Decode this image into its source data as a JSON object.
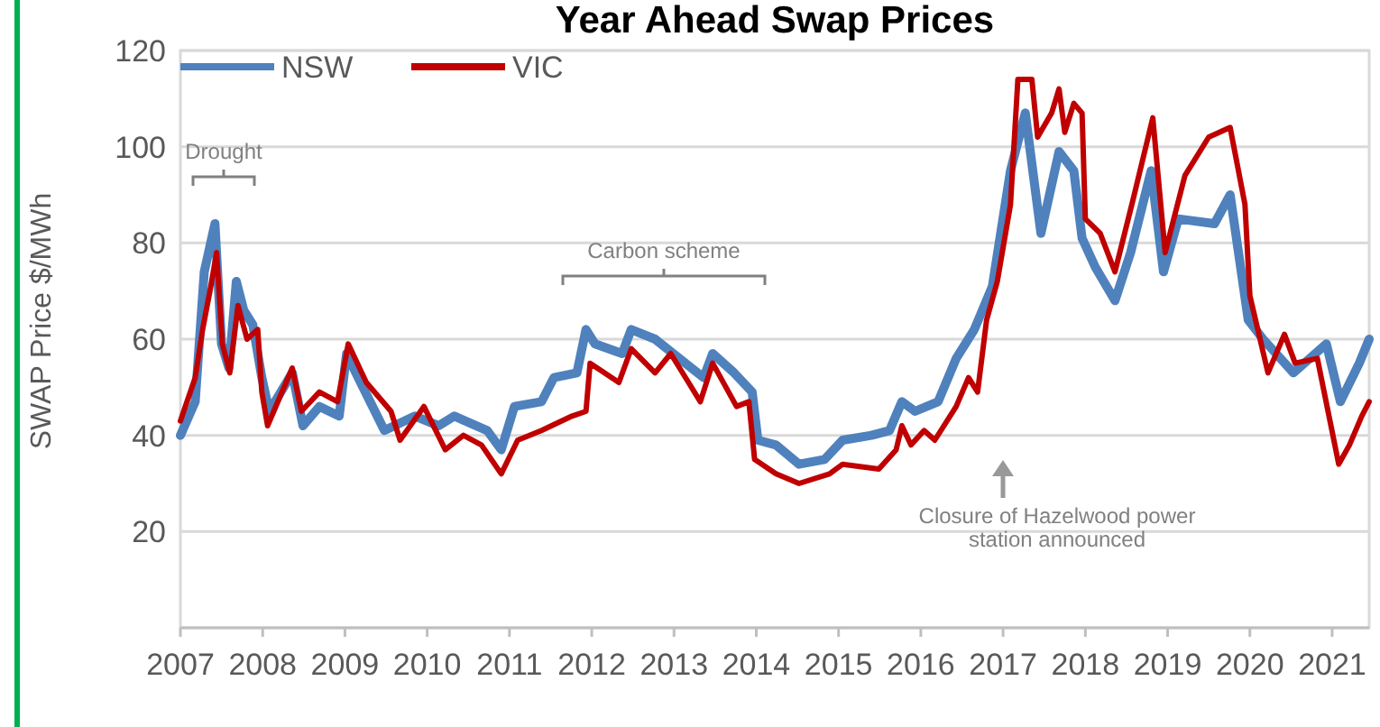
{
  "chart_data": {
    "type": "line",
    "title": "Year Ahead Swap Prices",
    "ylabel": "SWAP Price $/MWh",
    "xlim": [
      2007,
      2021.45
    ],
    "xticks": [
      2007,
      2008,
      2009,
      2010,
      2011,
      2012,
      2013,
      2014,
      2015,
      2016,
      2017,
      2018,
      2019,
      2020,
      2021
    ],
    "ylim": [
      0,
      120
    ],
    "yticks": [
      20,
      40,
      60,
      80,
      100,
      120
    ],
    "grid": "y",
    "legend": "top left",
    "line_style": "solid",
    "marker": "none",
    "annotations": [
      "Drought",
      "Carbon scheme",
      "Closure of Hazelwood power station announced"
    ],
    "series": [
      {
        "name": "NSW",
        "color": "#4f81bd",
        "x": [
          2007.0,
          2007.18,
          2007.29,
          2007.42,
          2007.5,
          2007.59,
          2007.68,
          2007.77,
          2007.88,
          2007.99,
          2008.08,
          2008.36,
          2008.49,
          2008.69,
          2008.93,
          2009.02,
          2009.19,
          2009.48,
          2009.85,
          2010.14,
          2010.33,
          2010.73,
          2010.9,
          2011.06,
          2011.39,
          2011.54,
          2011.82,
          2011.93,
          2012.04,
          2012.37,
          2012.48,
          2012.77,
          2012.99,
          2013.36,
          2013.47,
          2013.73,
          2013.95,
          2014.02,
          2014.24,
          2014.52,
          2014.83,
          2015.05,
          2015.4,
          2015.62,
          2015.77,
          2015.93,
          2016.21,
          2016.43,
          2016.65,
          2016.87,
          2017.09,
          2017.27,
          2017.46,
          2017.68,
          2017.86,
          2017.96,
          2018.12,
          2018.36,
          2018.55,
          2018.8,
          2018.95,
          2019.13,
          2019.57,
          2019.76,
          2019.98,
          2020.16,
          2020.53,
          2020.93,
          2021.1,
          2021.33,
          2021.45
        ],
        "values": [
          40,
          47,
          74,
          84,
          59,
          54,
          72,
          66,
          63,
          52,
          45,
          53,
          42,
          46,
          44,
          57,
          51,
          41,
          44,
          42,
          44,
          41,
          37,
          46,
          47,
          52,
          53,
          62,
          59,
          57,
          62,
          60,
          57,
          52,
          57,
          53,
          49,
          39,
          38,
          34,
          35,
          39,
          40,
          41,
          47,
          45,
          47,
          56,
          62,
          71,
          95,
          107,
          82,
          99,
          95,
          81,
          75,
          68,
          78,
          95,
          74,
          85,
          84,
          90,
          64,
          60,
          53,
          59,
          47,
          55,
          60
        ]
      },
      {
        "name": "VIC",
        "color": "#c00000",
        "x": [
          2007.0,
          2007.18,
          2007.27,
          2007.37,
          2007.44,
          2007.51,
          2007.6,
          2007.7,
          2007.81,
          2007.94,
          2007.99,
          2008.06,
          2008.36,
          2008.47,
          2008.69,
          2008.91,
          2009.04,
          2009.26,
          2009.56,
          2009.67,
          2009.96,
          2010.22,
          2010.44,
          2010.66,
          2010.9,
          2011.1,
          2011.39,
          2011.76,
          2011.93,
          2011.98,
          2012.33,
          2012.48,
          2012.77,
          2012.96,
          2013.32,
          2013.47,
          2013.76,
          2013.91,
          2013.98,
          2014.24,
          2014.52,
          2014.89,
          2015.05,
          2015.49,
          2015.7,
          2015.77,
          2015.88,
          2016.04,
          2016.17,
          2016.43,
          2016.58,
          2016.69,
          2016.8,
          2016.93,
          2017.09,
          2017.18,
          2017.35,
          2017.42,
          2017.59,
          2017.68,
          2017.75,
          2017.86,
          2017.96,
          2018.0,
          2018.18,
          2018.36,
          2018.58,
          2018.82,
          2018.97,
          2019.21,
          2019.5,
          2019.76,
          2019.94,
          2020.0,
          2020.22,
          2020.42,
          2020.55,
          2020.82,
          2021.08,
          2021.21,
          2021.36,
          2021.45
        ],
        "values": [
          43,
          52,
          62,
          71,
          78,
          59,
          53,
          67,
          60,
          62,
          49,
          42,
          54,
          45,
          49,
          47,
          59,
          51,
          45,
          39,
          46,
          37,
          40,
          38,
          32,
          39,
          41,
          44,
          45,
          55,
          51,
          58,
          53,
          57,
          47,
          55,
          46,
          47,
          35,
          32,
          30,
          32,
          34,
          33,
          37,
          42,
          38,
          41,
          39,
          46,
          52,
          49,
          64,
          72,
          88,
          114,
          114,
          102,
          107,
          112,
          103,
          109,
          107,
          85,
          82,
          74,
          89,
          106,
          78,
          94,
          102,
          104,
          88,
          69,
          53,
          61,
          55,
          56,
          34,
          38,
          44,
          47
        ]
      }
    ]
  }
}
